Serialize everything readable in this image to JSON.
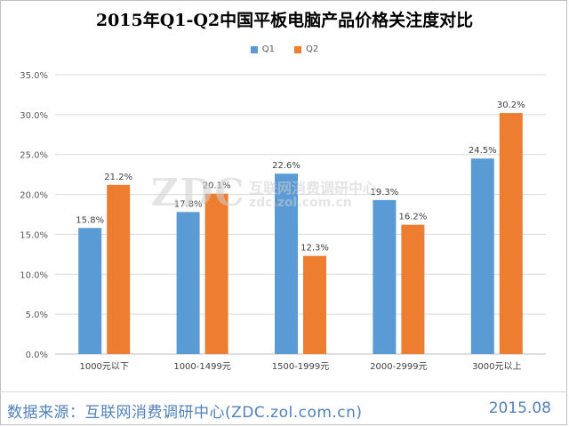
{
  "chart_data": {
    "type": "bar",
    "title": "2015年Q1-Q2中国平板电脑产品价格关注度对比",
    "categories": [
      "1000元以下",
      "1000-1499元",
      "1500-1999元",
      "2000-2999元",
      "3000元以上"
    ],
    "series": [
      {
        "name": "Q1",
        "color": "#5b9bd5",
        "values": [
          15.8,
          17.8,
          22.6,
          19.3,
          24.5
        ],
        "labels": [
          "15.8%",
          "17.8%",
          "22.6%",
          "19.3%",
          "24.5%"
        ]
      },
      {
        "name": "Q2",
        "color": "#ed7d31",
        "values": [
          21.2,
          20.1,
          12.3,
          16.2,
          30.2
        ],
        "labels": [
          "21.2%",
          "20.1%",
          "12.3%",
          "16.2%",
          "30.2%"
        ]
      }
    ],
    "ylim": [
      0,
      35
    ],
    "yticks": [
      0,
      5,
      10,
      15,
      20,
      25,
      30,
      35
    ],
    "ytick_labels": [
      "0.0%",
      "5.0%",
      "10.0%",
      "15.0%",
      "20.0%",
      "25.0%",
      "30.0%",
      "35.0%"
    ],
    "xlabel": "",
    "ylabel": "",
    "grid": true,
    "legend_position": "top-center"
  },
  "watermark": {
    "logo": "ZDC",
    "text_cn": "互联网消费调研中心",
    "url": "zdc.zol.com.cn"
  },
  "footer": {
    "source": "数据来源：互联网消费调研中心(ZDC.zol.com.cn)",
    "date": "2015.08"
  }
}
